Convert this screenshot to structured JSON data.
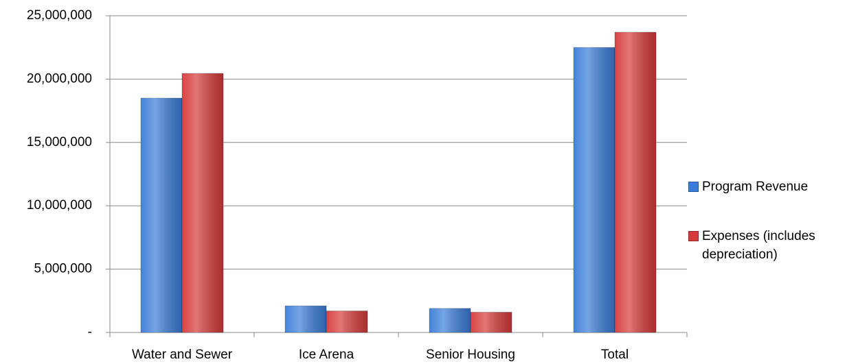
{
  "chart_data": {
    "type": "bar",
    "categories": [
      "Water and Sewer",
      "Ice Arena",
      "Senior Housing",
      "Total"
    ],
    "series": [
      {
        "name": "Program Revenue",
        "color": "#3b7dd8",
        "values": [
          18500000,
          2100000,
          1900000,
          22500000
        ]
      },
      {
        "name": "Expenses (includes depreciation)",
        "color": "#d63b3b",
        "values": [
          20450000,
          1700000,
          1600000,
          23700000
        ]
      }
    ],
    "ylim": [
      0,
      25000000
    ],
    "yticks": [
      {
        "value": 0,
        "label": "-"
      },
      {
        "value": 5000000,
        "label": "5,000,000"
      },
      {
        "value": 10000000,
        "label": "10,000,000"
      },
      {
        "value": 15000000,
        "label": "15,000,000"
      },
      {
        "value": 20000000,
        "label": "20,000,000"
      },
      {
        "value": 25000000,
        "label": "25,000,000"
      }
    ],
    "grid": true,
    "legend": "right"
  }
}
